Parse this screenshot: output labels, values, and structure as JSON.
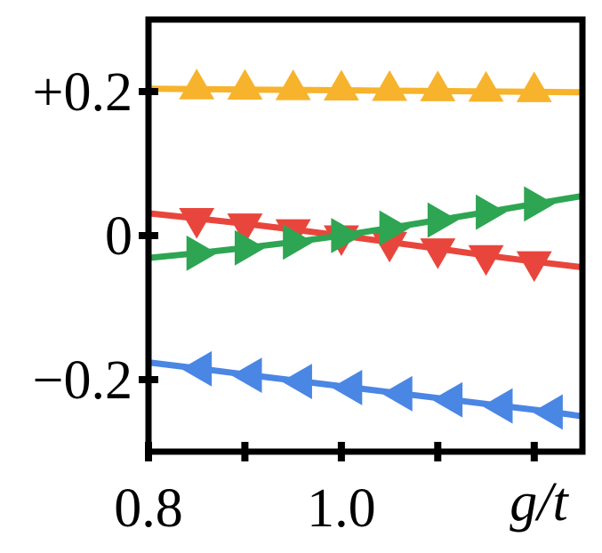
{
  "figure": {
    "background": "#ffffff",
    "axis_color": "#000000"
  },
  "chart_data": {
    "type": "line",
    "title": "",
    "xlabel": "g/t",
    "ylabel": "",
    "xlim": [
      0.8,
      1.25
    ],
    "ylim": [
      -0.3,
      0.3
    ],
    "grid": false,
    "legend": "none",
    "x_ticks": [
      {
        "value": 0.8,
        "label": "0.8"
      },
      {
        "value": 0.9,
        "label": ""
      },
      {
        "value": 1.0,
        "label": "1.0"
      },
      {
        "value": 1.1,
        "label": ""
      },
      {
        "value": 1.2,
        "label": ""
      }
    ],
    "y_ticks": [
      {
        "value": 0.2,
        "label": "+0.2"
      },
      {
        "value": 0.0,
        "label": "0"
      },
      {
        "value": -0.2,
        "label": "−0.2"
      }
    ],
    "series": [
      {
        "name": "amber-triangle-up",
        "marker": "triangle-up",
        "color": "#F7B32B",
        "x": [
          0.8,
          0.85,
          0.9,
          0.95,
          1.0,
          1.05,
          1.1,
          1.15,
          1.2,
          1.25
        ],
        "y": [
          0.204,
          0.2034,
          0.2029,
          0.2023,
          0.2018,
          0.2012,
          0.2007,
          0.2001,
          0.1996,
          0.199
        ]
      },
      {
        "name": "red-triangle-down",
        "marker": "triangle-down",
        "color": "#E8463C",
        "x": [
          0.8,
          0.85,
          0.9,
          0.95,
          1.0,
          1.05,
          1.1,
          1.15,
          1.2,
          1.25
        ],
        "y": [
          0.031,
          0.024,
          0.0165,
          0.0085,
          0.0,
          -0.009,
          -0.018,
          -0.0275,
          -0.036,
          -0.044
        ]
      },
      {
        "name": "green-triangle-right",
        "marker": "triangle-right",
        "color": "#2EA552",
        "x": [
          0.8,
          0.85,
          0.9,
          0.95,
          1.0,
          1.05,
          1.1,
          1.15,
          1.2,
          1.25
        ],
        "y": [
          -0.031,
          -0.0245,
          -0.017,
          -0.009,
          0.0,
          0.0105,
          0.0215,
          0.0325,
          0.044,
          0.055
        ]
      },
      {
        "name": "blue-triangle-left",
        "marker": "triangle-left",
        "color": "#4A86E4",
        "x": [
          0.8,
          0.855,
          0.907,
          0.959,
          1.011,
          1.063,
          1.115,
          1.167,
          1.219,
          1.25
        ],
        "y": [
          -0.176,
          -0.185,
          -0.194,
          -0.2025,
          -0.211,
          -0.2195,
          -0.228,
          -0.2365,
          -0.245,
          -0.251
        ]
      }
    ]
  }
}
